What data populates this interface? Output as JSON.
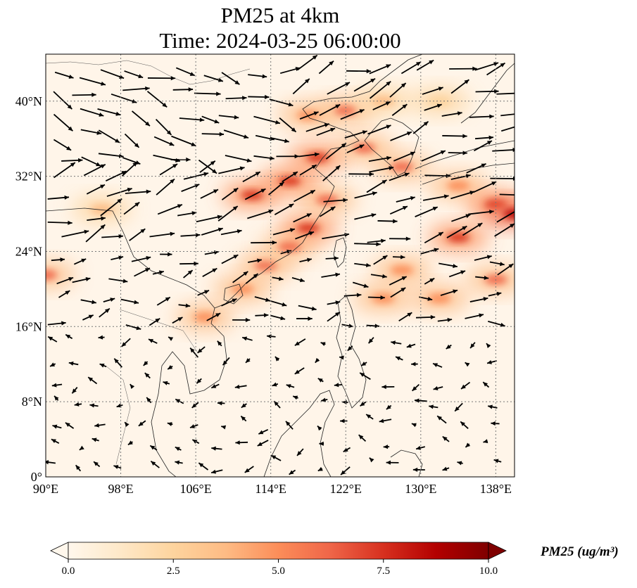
{
  "title": {
    "line1": "PM25 at 4km",
    "line2": "Time: 2024-03-25 06:00:00"
  },
  "map": {
    "projection": "PlateCarree",
    "lon_range": [
      90,
      140
    ],
    "lat_range": [
      0,
      45
    ],
    "x_ticks": [
      {
        "value": 90,
        "label": "90°E"
      },
      {
        "value": 98,
        "label": "98°E"
      },
      {
        "value": 106,
        "label": "106°E"
      },
      {
        "value": 114,
        "label": "114°E"
      },
      {
        "value": 122,
        "label": "122°E"
      },
      {
        "value": 130,
        "label": "130°E"
      },
      {
        "value": 138,
        "label": "138°E"
      }
    ],
    "y_ticks": [
      {
        "value": 0,
        "label": "0°"
      },
      {
        "value": 8,
        "label": "8°N"
      },
      {
        "value": 16,
        "label": "16°N"
      },
      {
        "value": 24,
        "label": "24°N"
      },
      {
        "value": 32,
        "label": "32°N"
      },
      {
        "value": 40,
        "label": "40°N"
      }
    ],
    "gridlines": true,
    "field": "PM25 concentration with wind vectors (quiver)",
    "high_concentration_band": [
      {
        "lon": 90,
        "lat": 21.5,
        "value": 6
      },
      {
        "lon": 96,
        "lat": 28.5,
        "value": 4
      },
      {
        "lon": 107,
        "lat": 17,
        "value": 5
      },
      {
        "lon": 111,
        "lat": 20,
        "value": 5
      },
      {
        "lon": 113.5,
        "lat": 22.5,
        "value": 6
      },
      {
        "lon": 116,
        "lat": 24.5,
        "value": 6
      },
      {
        "lon": 118,
        "lat": 26.5,
        "value": 7
      },
      {
        "lon": 120,
        "lat": 29.5,
        "value": 6
      },
      {
        "lon": 116,
        "lat": 31.5,
        "value": 7
      },
      {
        "lon": 112,
        "lat": 30,
        "value": 7
      },
      {
        "lon": 119,
        "lat": 34,
        "value": 7
      },
      {
        "lon": 124,
        "lat": 35,
        "value": 6
      },
      {
        "lon": 128,
        "lat": 33,
        "value": 6
      },
      {
        "lon": 134,
        "lat": 31,
        "value": 5
      },
      {
        "lon": 138,
        "lat": 29,
        "value": 7
      },
      {
        "lon": 140,
        "lat": 28,
        "value": 9
      },
      {
        "lon": 134,
        "lat": 25.5,
        "value": 7
      },
      {
        "lon": 128,
        "lat": 22,
        "value": 5
      },
      {
        "lon": 126,
        "lat": 19,
        "value": 5
      },
      {
        "lon": 132,
        "lat": 19,
        "value": 5
      },
      {
        "lon": 138,
        "lat": 21,
        "value": 6
      },
      {
        "lon": 118,
        "lat": 38.5,
        "value": 5
      },
      {
        "lon": 122,
        "lat": 39,
        "value": 6
      },
      {
        "lon": 126,
        "lat": 40,
        "value": 4
      },
      {
        "lon": 132,
        "lat": 40,
        "value": 3
      }
    ]
  },
  "colorbar": {
    "cmap": "OrRd",
    "min": 0.0,
    "max": 10.0,
    "extend": "both",
    "ticks": [
      "0.0",
      "2.5",
      "5.0",
      "7.5",
      "10.0"
    ],
    "colors": [
      "#fff7ec",
      "#fee8c8",
      "#fdd49e",
      "#fdbb84",
      "#fc8d59",
      "#ef6548",
      "#d7301f",
      "#b30000",
      "#7f0000"
    ],
    "label": "PM25 (ug/m³)"
  }
}
